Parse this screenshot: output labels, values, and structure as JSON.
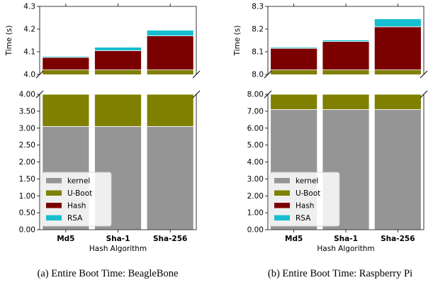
{
  "chart_data": [
    {
      "type": "bar",
      "stacked": true,
      "broken_axis": true,
      "caption": "(a) Entire Boot Time: BeagleBone",
      "xlabel": "Hash Algorithm",
      "ylabel": "Time (s)",
      "categories": [
        "Md5",
        "Sha-1",
        "Sha-256"
      ],
      "series": [
        {
          "name": "kernel",
          "color": "#959595",
          "values": [
            3.05,
            3.05,
            3.05
          ]
        },
        {
          "name": "U-Boot",
          "color": "#808000",
          "values": [
            0.97,
            0.97,
            0.97
          ]
        },
        {
          "name": "Hash",
          "color": "#7b0000",
          "values": [
            0.055,
            0.085,
            0.15
          ]
        },
        {
          "name": "RSA",
          "color": "#17becf",
          "values": [
            0.005,
            0.015,
            0.025
          ]
        }
      ],
      "ylim_lower": [
        0,
        4
      ],
      "ylim_upper": [
        4.0,
        4.3
      ],
      "yticks_lower": [
        "0.00",
        "0.50",
        "1.00",
        "1.50",
        "2.00",
        "2.50",
        "3.00",
        "3.50",
        "4.00"
      ],
      "yticks_upper": [
        "4.0",
        "4.1",
        "4.2",
        "4.3"
      ],
      "yticks_lower_values": [
        0,
        0.5,
        1,
        1.5,
        2,
        2.5,
        3,
        3.5,
        4
      ],
      "yticks_upper_values": [
        4.0,
        4.1,
        4.2,
        4.3
      ],
      "legend_position": "lower-left"
    },
    {
      "type": "bar",
      "stacked": true,
      "broken_axis": true,
      "caption": "(b) Entire Boot Time: Raspberry Pi",
      "xlabel": "Hash Algorithm",
      "ylabel": "Time (s)",
      "categories": [
        "Md5",
        "Sha-1",
        "Sha-256"
      ],
      "series": [
        {
          "name": "kernel",
          "color": "#959595",
          "values": [
            7.1,
            7.1,
            7.1
          ]
        },
        {
          "name": "U-Boot",
          "color": "#808000",
          "values": [
            0.92,
            0.92,
            0.92
          ]
        },
        {
          "name": "Hash",
          "color": "#7b0000",
          "values": [
            0.095,
            0.125,
            0.19
          ]
        },
        {
          "name": "RSA",
          "color": "#17becf",
          "values": [
            0.005,
            0.007,
            0.035
          ]
        }
      ],
      "ylim_lower": [
        0,
        8
      ],
      "ylim_upper": [
        8.0,
        8.3
      ],
      "yticks_lower": [
        "0.00",
        "1.00",
        "2.00",
        "3.00",
        "4.00",
        "5.00",
        "6.00",
        "7.00",
        "8.00"
      ],
      "yticks_upper": [
        "8.0",
        "8.1",
        "8.2",
        "8.3"
      ],
      "yticks_lower_values": [
        0,
        1,
        2,
        3,
        4,
        5,
        6,
        7,
        8
      ],
      "yticks_upper_values": [
        8.0,
        8.1,
        8.2,
        8.3
      ],
      "legend_position": "lower-left"
    }
  ]
}
